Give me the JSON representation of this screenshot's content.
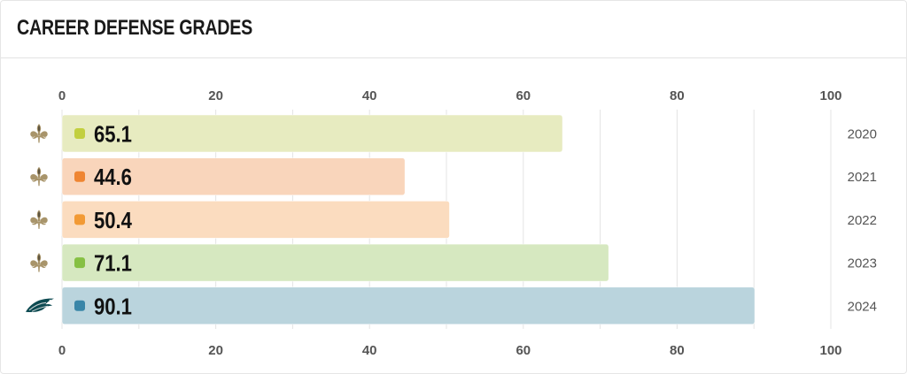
{
  "title": "CAREER DEFENSE GRADES",
  "chart_data": {
    "type": "bar",
    "orientation": "horizontal",
    "title": "CAREER DEFENSE GRADES",
    "xlim": [
      0,
      100
    ],
    "ticks": [
      0,
      20,
      40,
      60,
      80,
      100
    ],
    "tick_labels_top": true,
    "tick_labels_bottom": true,
    "grid": true,
    "rows": [
      {
        "year": "2020",
        "team_icon": "saints-fleur-de-lis-icon",
        "value": 65.1,
        "label": "65.1",
        "bar_color": "#e7ebc0",
        "dot_color": "#c2cf3f"
      },
      {
        "year": "2021",
        "team_icon": "saints-fleur-de-lis-icon",
        "value": 44.6,
        "label": "44.6",
        "bar_color": "#f9d5bb",
        "dot_color": "#ef8532"
      },
      {
        "year": "2022",
        "team_icon": "saints-fleur-de-lis-icon",
        "value": 50.4,
        "label": "50.4",
        "bar_color": "#fbdcbf",
        "dot_color": "#f29a35"
      },
      {
        "year": "2023",
        "team_icon": "saints-fleur-de-lis-icon",
        "value": 71.1,
        "label": "71.1",
        "bar_color": "#d6e8c0",
        "dot_color": "#86c043"
      },
      {
        "year": "2024",
        "team_icon": "eagles-logo-icon",
        "value": 90.1,
        "label": "90.1",
        "bar_color": "#bad4dd",
        "dot_color": "#3a86a8"
      }
    ]
  }
}
